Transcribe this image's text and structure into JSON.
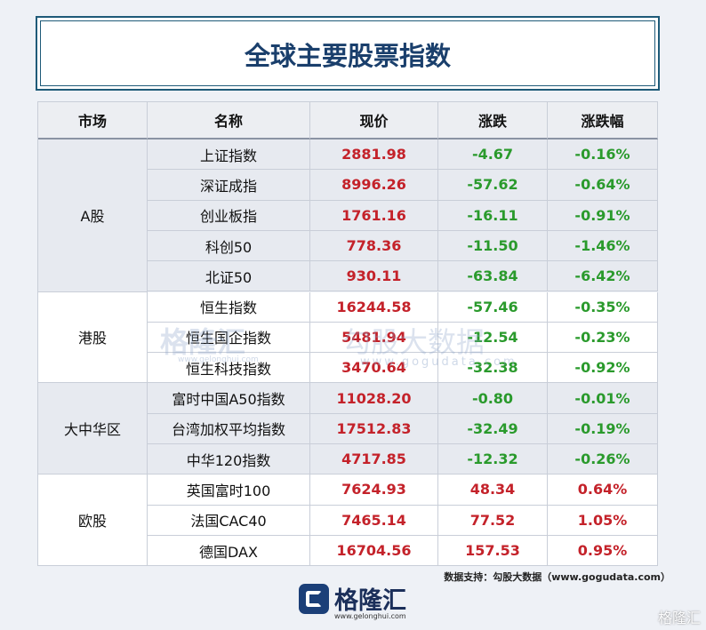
{
  "title": "全球主要股票指数",
  "table": {
    "columns": [
      "市场",
      "名称",
      "现价",
      "涨跌",
      "涨跌幅"
    ],
    "groups": [
      {
        "market": "A股",
        "rows": [
          [
            "上证指数",
            "2881.98",
            "-4.67",
            "-0.16%"
          ],
          [
            "深证成指",
            "8996.26",
            "-57.62",
            "-0.64%"
          ],
          [
            "创业板指",
            "1761.16",
            "-16.11",
            "-0.91%"
          ],
          [
            "科创50",
            "778.36",
            "-11.50",
            "-1.46%"
          ],
          [
            "北证50",
            "930.11",
            "-63.84",
            "-6.42%"
          ]
        ]
      },
      {
        "market": "港股",
        "rows": [
          [
            "恒生指数",
            "16244.58",
            "-57.46",
            "-0.35%"
          ],
          [
            "恒生国企指数",
            "5481.94",
            "-12.54",
            "-0.23%"
          ],
          [
            "恒生科技指数",
            "3470.64",
            "-32.38",
            "-0.92%"
          ]
        ]
      },
      {
        "market": "大中华区",
        "rows": [
          [
            "富时中国A50指数",
            "11028.20",
            "-0.80",
            "-0.01%"
          ],
          [
            "台湾加权平均指数",
            "17512.83",
            "-32.49",
            "-0.19%"
          ],
          [
            "中华120指数",
            "4717.85",
            "-12.32",
            "-0.26%"
          ]
        ]
      },
      {
        "market": "欧股",
        "rows": [
          [
            "英国富时100",
            "7624.93",
            "48.34",
            "0.64%"
          ],
          [
            "法国CAC40",
            "7465.14",
            "77.52",
            "1.05%"
          ],
          [
            "德国DAX",
            "16704.56",
            "157.53",
            "0.95%"
          ]
        ]
      }
    ],
    "colors": {
      "up": "#c4222a",
      "down": "#2a9a2c"
    }
  },
  "source": "数据支持：勾股大数据（www.gogudata.com）",
  "logo": {
    "name": "格隆汇",
    "url": "www.gelonghui.com"
  },
  "watermark": {
    "left": "格隆汇",
    "left_url": "www.gelonghui.com",
    "right": "勾股大数据",
    "right_url": "www.gogudata.com",
    "corner": "格隆汇"
  }
}
